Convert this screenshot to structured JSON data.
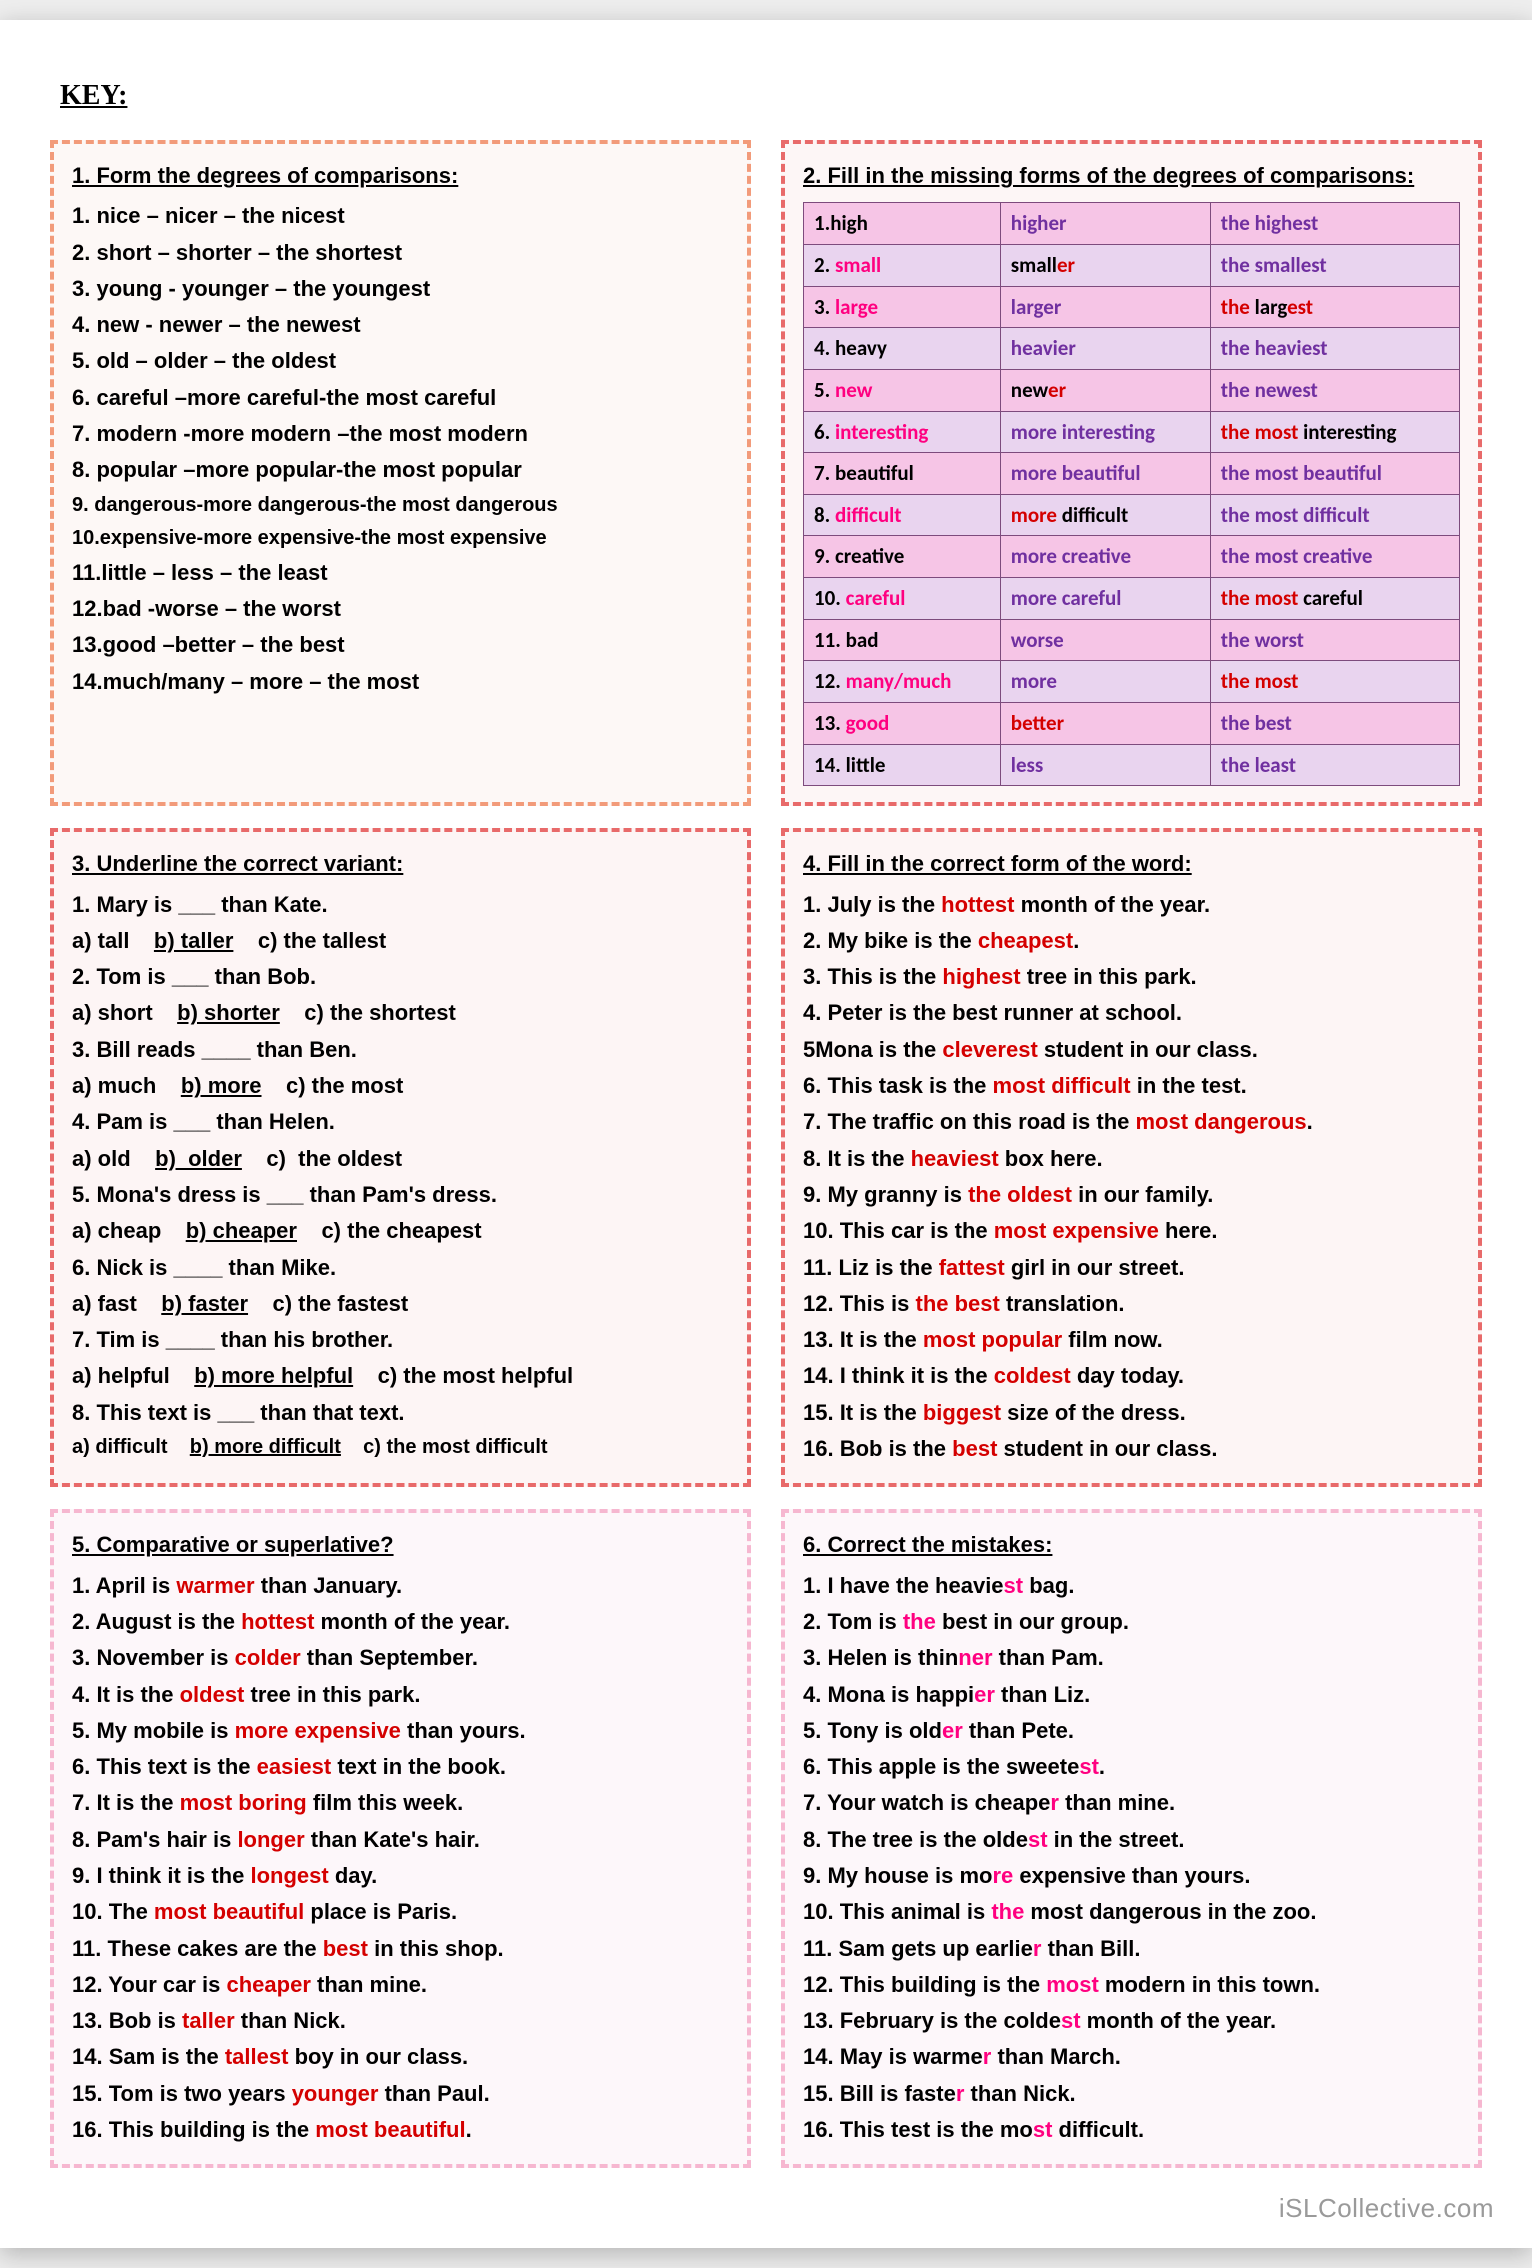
{
  "page": {
    "key_label": "KEY:",
    "watermark": "iSLCollective.com",
    "bg": "#eeeeee",
    "paper_bg": "#ffffff"
  },
  "panel1": {
    "border_color": "#f29b7a",
    "heading": "1. Form the degrees of comparisons:",
    "lines": [
      "1. nice – nicer – the nicest",
      "2. short – shorter – the shortest",
      "3. young - younger – the youngest",
      "4. new - newer – the newest",
      "5. old – older – the oldest",
      "6. careful –more careful-the most careful",
      "7. modern -more modern –the most modern",
      "8. popular –more popular-the most popular",
      "9. dangerous-more dangerous-the most dangerous",
      "10.expensive-more expensive-the most expensive",
      "11.little – less – the least",
      "12.bad -worse – the worst",
      "13.good –better – the best",
      "14.much/many – more – the most"
    ]
  },
  "panel2": {
    "border_color": "#e86a6a",
    "heading": "2. Fill in the missing forms of the degrees of comparisons:",
    "rows": [
      {
        "bg": "pink",
        "c1": [
          [
            "1.high",
            "black"
          ]
        ],
        "c2": [
          [
            "higher",
            "purple"
          ]
        ],
        "c3": [
          [
            "the highest",
            "purple"
          ]
        ]
      },
      {
        "bg": "lav",
        "c1": [
          [
            "2. ",
            "black"
          ],
          [
            "small",
            "hot"
          ]
        ],
        "c2": [
          [
            "small",
            "black"
          ],
          [
            "er",
            "red"
          ]
        ],
        "c3": [
          [
            "the smallest",
            "purple"
          ]
        ]
      },
      {
        "bg": "pink",
        "c1": [
          [
            "3. ",
            "black"
          ],
          [
            "large",
            "hot"
          ]
        ],
        "c2": [
          [
            "larger",
            "purple"
          ]
        ],
        "c3": [
          [
            "the ",
            "red"
          ],
          [
            "larg",
            "black"
          ],
          [
            "est",
            "red"
          ]
        ]
      },
      {
        "bg": "lav",
        "c1": [
          [
            "4. heavy",
            "black"
          ]
        ],
        "c2": [
          [
            "heavier",
            "purple"
          ]
        ],
        "c3": [
          [
            "the heaviest",
            "purple"
          ]
        ]
      },
      {
        "bg": "pink",
        "c1": [
          [
            "5. ",
            "black"
          ],
          [
            "new",
            "hot"
          ]
        ],
        "c2": [
          [
            "new",
            "black"
          ],
          [
            "er",
            "red"
          ]
        ],
        "c3": [
          [
            "the newest",
            "purple"
          ]
        ]
      },
      {
        "bg": "lav",
        "c1": [
          [
            "6. ",
            "black"
          ],
          [
            "interesting",
            "hot"
          ]
        ],
        "c2": [
          [
            "more interesting",
            "purple"
          ]
        ],
        "c3": [
          [
            "the most ",
            "red"
          ],
          [
            "interesting",
            "black"
          ]
        ]
      },
      {
        "bg": "pink",
        "c1": [
          [
            "7. beautiful",
            "black"
          ]
        ],
        "c2": [
          [
            "more beautiful",
            "purple"
          ]
        ],
        "c3": [
          [
            "the most beautiful",
            "purple"
          ]
        ]
      },
      {
        "bg": "lav",
        "c1": [
          [
            "8. ",
            "black"
          ],
          [
            "difficult",
            "hot"
          ]
        ],
        "c2": [
          [
            "more ",
            "red"
          ],
          [
            "difficult",
            "black"
          ]
        ],
        "c3": [
          [
            "the most difficult",
            "purple"
          ]
        ]
      },
      {
        "bg": "pink",
        "c1": [
          [
            "9. creative",
            "black"
          ]
        ],
        "c2": [
          [
            "more creative",
            "purple"
          ]
        ],
        "c3": [
          [
            "the most creative",
            "purple"
          ]
        ]
      },
      {
        "bg": "lav",
        "c1": [
          [
            "10. ",
            "black"
          ],
          [
            "careful",
            "hot"
          ]
        ],
        "c2": [
          [
            "more careful",
            "purple"
          ]
        ],
        "c3": [
          [
            "the most ",
            "red"
          ],
          [
            "careful",
            "black"
          ]
        ]
      },
      {
        "bg": "pink",
        "c1": [
          [
            "11.  bad",
            "black"
          ]
        ],
        "c2": [
          [
            "worse",
            "purple"
          ]
        ],
        "c3": [
          [
            "the worst",
            "purple"
          ]
        ]
      },
      {
        "bg": "lav",
        "c1": [
          [
            "12. ",
            "black"
          ],
          [
            "many/much",
            "hot"
          ]
        ],
        "c2": [
          [
            "more",
            "purple"
          ]
        ],
        "c3": [
          [
            "the most",
            "red"
          ]
        ]
      },
      {
        "bg": "pink",
        "c1": [
          [
            "13. ",
            "black"
          ],
          [
            "good",
            "hot"
          ]
        ],
        "c2": [
          [
            "better",
            "red"
          ]
        ],
        "c3": [
          [
            "the best",
            "purple"
          ]
        ]
      },
      {
        "bg": "lav",
        "c1": [
          [
            "14. little",
            "black"
          ]
        ],
        "c2": [
          [
            "less",
            "purple"
          ]
        ],
        "c3": [
          [
            "the least",
            "purple"
          ]
        ]
      }
    ],
    "col_widths": [
      "30%",
      "32%",
      "38%"
    ],
    "row_pink_bg": "#f6c5e6",
    "row_lav_bg": "#e9d4ef",
    "border": "#7d4b7d"
  },
  "panel3": {
    "border_color": "#e86a6a",
    "heading": "3. Underline the correct variant:",
    "items": [
      {
        "q": "1. Mary is ___ than Kate.",
        "opts": [
          [
            "a) tall",
            false
          ],
          [
            "b) taller",
            true
          ],
          [
            "c) the tallest",
            false
          ]
        ]
      },
      {
        "q": "2. Tom is ___ than Bob.",
        "opts": [
          [
            "a) short",
            false
          ],
          [
            "b) shorter",
            true
          ],
          [
            "c) the shortest",
            false
          ]
        ]
      },
      {
        "q": "3. Bill reads ____ than Ben.",
        "opts": [
          [
            "a) much",
            false
          ],
          [
            "b) more",
            true
          ],
          [
            "c) the most",
            false
          ]
        ]
      },
      {
        "q": "4. Pam is ___ than Helen.",
        "opts": [
          [
            "a) old",
            false
          ],
          [
            "b)  older",
            true
          ],
          [
            "c)  the oldest",
            false
          ]
        ]
      },
      {
        "q": "5. Mona's dress is ___ than Pam's dress.",
        "opts": [
          [
            "a) cheap",
            false
          ],
          [
            "b) cheaper",
            true
          ],
          [
            "c) the cheapest",
            false
          ]
        ]
      },
      {
        "q": "6. Nick is ____ than Mike.",
        "opts": [
          [
            "a) fast",
            false
          ],
          [
            "b) faster",
            true
          ],
          [
            "c) the fastest",
            false
          ]
        ]
      },
      {
        "q": "7. Tim is ____ than his brother.",
        "opts": [
          [
            "a) helpful",
            false
          ],
          [
            "b) more helpful",
            true
          ],
          [
            "c) the most helpful",
            false
          ]
        ]
      },
      {
        "q": "8. This text is ___ than that text.",
        "opts": [
          [
            "a) difficult",
            false
          ],
          [
            "b) more difficult",
            true
          ],
          [
            "c) the most difficult",
            false
          ]
        ],
        "small": true
      }
    ]
  },
  "panel4": {
    "border_color": "#e86a6a",
    "heading": "4. Fill in the correct form of the word:",
    "lines": [
      [
        [
          "1. July is the ",
          ""
        ],
        [
          "hottest",
          "r"
        ],
        [
          " month of the year.",
          ""
        ]
      ],
      [
        [
          "2. My bike is the ",
          ""
        ],
        [
          "cheapest",
          "r"
        ],
        [
          ".",
          ""
        ]
      ],
      [
        [
          "3. This is the ",
          ""
        ],
        [
          "highest",
          "r"
        ],
        [
          " tree in this park.",
          ""
        ]
      ],
      [
        [
          "4. Peter is the best runner at school.",
          ""
        ]
      ],
      [
        [
          "5Mona is the ",
          ""
        ],
        [
          "cleverest",
          "r"
        ],
        [
          " student in our class.",
          ""
        ]
      ],
      [
        [
          "6. This task is the ",
          ""
        ],
        [
          "most difficult",
          "r"
        ],
        [
          " in the test.",
          ""
        ]
      ],
      [
        [
          "7. The traffic on this road is the ",
          ""
        ],
        [
          "most dangerous",
          "r"
        ],
        [
          ".",
          ""
        ]
      ],
      [
        [
          "8. It is the ",
          ""
        ],
        [
          "heaviest",
          "r"
        ],
        [
          " box here.",
          ""
        ]
      ],
      [
        [
          "9. My granny is ",
          ""
        ],
        [
          "the oldest",
          "r"
        ],
        [
          " in our family.",
          ""
        ]
      ],
      [
        [
          "10. This car is the ",
          ""
        ],
        [
          "most expensive",
          "r"
        ],
        [
          " here.",
          ""
        ]
      ],
      [
        [
          "11. Liz is the ",
          ""
        ],
        [
          "fattest",
          "r"
        ],
        [
          " girl in our street.",
          ""
        ]
      ],
      [
        [
          "12. This is ",
          ""
        ],
        [
          "the best",
          "r"
        ],
        [
          " translation.",
          ""
        ]
      ],
      [
        [
          "13. It is the ",
          ""
        ],
        [
          "most popular",
          "r"
        ],
        [
          " film now.",
          ""
        ]
      ],
      [
        [
          "14. I think it is the ",
          ""
        ],
        [
          "coldest",
          "r"
        ],
        [
          " day today.",
          ""
        ]
      ],
      [
        [
          "15. It is the ",
          ""
        ],
        [
          "biggest",
          "r"
        ],
        [
          " size of the dress.",
          ""
        ]
      ],
      [
        [
          "16. Bob is the ",
          ""
        ],
        [
          "best",
          "r"
        ],
        [
          " student in our class.",
          ""
        ]
      ]
    ]
  },
  "panel5": {
    "border_color": "#f6b7d0",
    "heading": "5. Comparative or superlative?",
    "lines": [
      [
        [
          "1. April is ",
          ""
        ],
        [
          "warmer",
          "r"
        ],
        [
          " than January.",
          ""
        ]
      ],
      [
        [
          "2. August is the ",
          ""
        ],
        [
          "hottest",
          "r"
        ],
        [
          " month of the year.",
          ""
        ]
      ],
      [
        [
          "3. November is ",
          ""
        ],
        [
          "colder",
          "r"
        ],
        [
          " than September.",
          ""
        ]
      ],
      [
        [
          "4. It is the ",
          ""
        ],
        [
          "oldest",
          "r"
        ],
        [
          " tree in this park.",
          ""
        ]
      ],
      [
        [
          "5. My mobile is ",
          ""
        ],
        [
          "more expensive",
          "r"
        ],
        [
          " than yours.",
          ""
        ]
      ],
      [
        [
          "6. This text is the ",
          ""
        ],
        [
          "easiest",
          "r"
        ],
        [
          " text in the book.",
          ""
        ]
      ],
      [
        [
          "7. It is the ",
          ""
        ],
        [
          "most boring",
          "r"
        ],
        [
          " film this week.",
          ""
        ]
      ],
      [
        [
          "8. Pam's hair is ",
          ""
        ],
        [
          "longer",
          "r"
        ],
        [
          " than Kate's hair.",
          ""
        ]
      ],
      [
        [
          "9. I think it is the ",
          ""
        ],
        [
          "longest",
          "r"
        ],
        [
          " day.",
          ""
        ]
      ],
      [
        [
          "10. The ",
          ""
        ],
        [
          "most beautiful",
          "r"
        ],
        [
          " place is Paris.",
          ""
        ]
      ],
      [
        [
          "11. These cakes are the ",
          ""
        ],
        [
          "best",
          "r"
        ],
        [
          " in this shop.",
          ""
        ]
      ],
      [
        [
          "12. Your car is ",
          ""
        ],
        [
          "cheaper",
          "r"
        ],
        [
          " than mine.",
          ""
        ]
      ],
      [
        [
          "13. Bob is ",
          ""
        ],
        [
          "taller",
          "r"
        ],
        [
          " than Nick.",
          ""
        ]
      ],
      [
        [
          "14. Sam is the ",
          ""
        ],
        [
          "tallest",
          "r"
        ],
        [
          " boy in our class.",
          ""
        ]
      ],
      [
        [
          "15. Tom is two years ",
          ""
        ],
        [
          "younger",
          "r"
        ],
        [
          " than Paul.",
          ""
        ]
      ],
      [
        [
          "16. This building is the ",
          ""
        ],
        [
          "most beautiful",
          "r"
        ],
        [
          ".",
          ""
        ]
      ]
    ]
  },
  "panel6": {
    "border_color": "#f6b7d0",
    "heading": "6. Correct the mistakes:",
    "lines": [
      [
        [
          "1. I have the heavie",
          ""
        ],
        [
          "st",
          "hp"
        ],
        [
          " bag.",
          ""
        ]
      ],
      [
        [
          "2. Tom is ",
          ""
        ],
        [
          "the",
          "hp"
        ],
        [
          " best in our group.",
          ""
        ]
      ],
      [
        [
          "3. Helen is thin",
          ""
        ],
        [
          "ner",
          "hp"
        ],
        [
          " than Pam.",
          ""
        ]
      ],
      [
        [
          "4. Mona is happi",
          ""
        ],
        [
          "er",
          "hp"
        ],
        [
          " than Liz.",
          ""
        ]
      ],
      [
        [
          "5. Tony is old",
          ""
        ],
        [
          "er",
          "hp"
        ],
        [
          " than Pete.",
          ""
        ]
      ],
      [
        [
          "6. This apple is the sweete",
          ""
        ],
        [
          "st",
          "hp"
        ],
        [
          ".",
          ""
        ]
      ],
      [
        [
          "7. Your watch is cheape",
          ""
        ],
        [
          "r",
          "hp"
        ],
        [
          " than mine.",
          ""
        ]
      ],
      [
        [
          "8. The tree is the olde",
          ""
        ],
        [
          "st",
          "hp"
        ],
        [
          " in the street.",
          ""
        ]
      ],
      [
        [
          "9. My house is mo",
          ""
        ],
        [
          "re",
          "hp"
        ],
        [
          " expensive than yours.",
          ""
        ]
      ],
      [
        [
          "10. This animal is ",
          ""
        ],
        [
          "the",
          "hp"
        ],
        [
          " most dangerous in the zoo.",
          ""
        ]
      ],
      [
        [
          "11. Sam gets up earlie",
          ""
        ],
        [
          "r",
          "hp"
        ],
        [
          " than Bill.",
          ""
        ]
      ],
      [
        [
          "12. This building is the ",
          ""
        ],
        [
          "most",
          "hp"
        ],
        [
          " modern in this town.",
          ""
        ]
      ],
      [
        [
          "13. February is the colde",
          ""
        ],
        [
          "st",
          "hp"
        ],
        [
          " month of the year.",
          ""
        ]
      ],
      [
        [
          "14. May is warme",
          ""
        ],
        [
          "r",
          "hp"
        ],
        [
          " than March.",
          ""
        ]
      ],
      [
        [
          "15. Bill is faste",
          ""
        ],
        [
          "r",
          "hp"
        ],
        [
          " than Nick.",
          ""
        ]
      ],
      [
        [
          "16. This test is the mo",
          ""
        ],
        [
          "st",
          "hp"
        ],
        [
          " difficult.",
          ""
        ]
      ]
    ]
  }
}
